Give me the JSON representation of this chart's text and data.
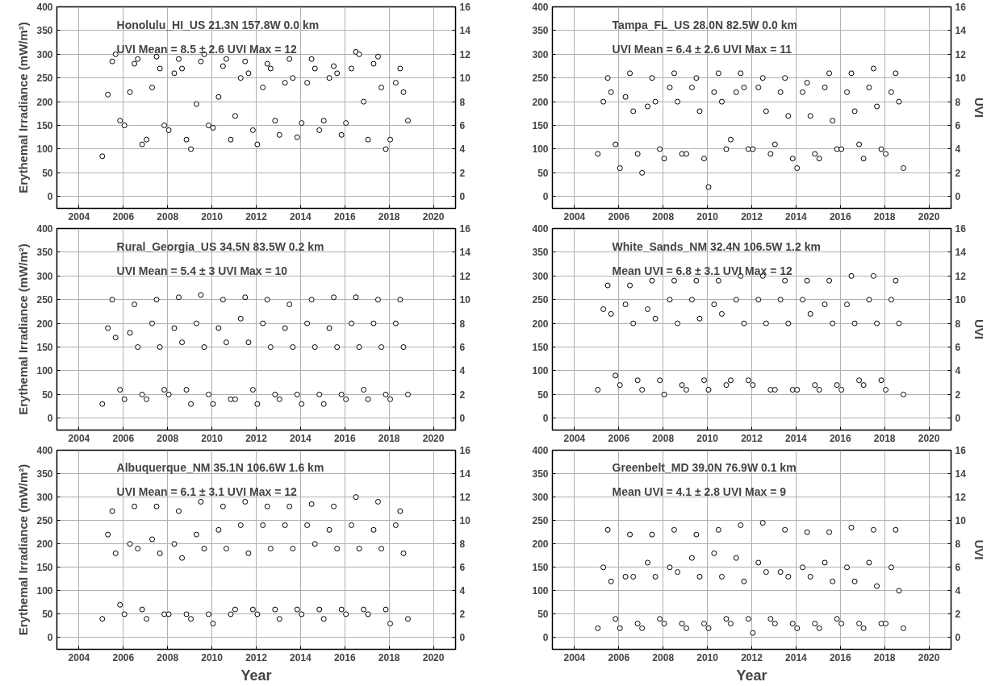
{
  "chart_data": [
    {
      "type": "scatter",
      "annotations": [
        "Honolulu_HI_US    21.3N  157.8W     0.0 km",
        "UVI Mean = 8.5 ± 2.6    UVI Max = 12"
      ],
      "ylabel": "Erythemal Irradiance (mW/m²)",
      "xlim": [
        2003,
        2021
      ],
      "xticks": [
        2004,
        2006,
        2008,
        2010,
        2012,
        2014,
        2016,
        2018,
        2020
      ],
      "ylim": [
        -25,
        400
      ],
      "yticks": [
        0,
        50,
        100,
        150,
        200,
        250,
        300,
        350,
        400
      ],
      "y2lim": [
        -1,
        16
      ],
      "y2ticks": [
        0,
        2,
        4,
        6,
        8,
        10,
        12,
        14,
        16
      ],
      "grid": true,
      "marker": "circle",
      "tick_labels": "xy",
      "x": [
        2005.05,
        2005.3,
        2005.5,
        2005.65,
        2005.85,
        2006.05,
        2006.3,
        2006.5,
        2006.65,
        2006.85,
        2007.05,
        2007.3,
        2007.5,
        2007.65,
        2007.85,
        2008.05,
        2008.3,
        2008.5,
        2008.65,
        2008.85,
        2009.05,
        2009.3,
        2009.5,
        2009.65,
        2009.85,
        2010.05,
        2010.3,
        2010.5,
        2010.65,
        2010.85,
        2011.05,
        2011.3,
        2011.5,
        2011.65,
        2011.85,
        2012.05,
        2012.3,
        2012.5,
        2012.65,
        2012.85,
        2013.05,
        2013.3,
        2013.5,
        2013.65,
        2013.85,
        2014.05,
        2014.3,
        2014.5,
        2014.65,
        2014.85,
        2015.05,
        2015.3,
        2015.5,
        2015.65,
        2015.85,
        2016.05,
        2016.3,
        2016.5,
        2016.65,
        2016.85,
        2017.05,
        2017.3,
        2017.5,
        2017.65,
        2017.85,
        2018.05,
        2018.3,
        2018.5,
        2018.65,
        2018.85
      ],
      "series": [
        {
          "color": "#000000",
          "values": [
            85,
            215,
            285,
            300,
            160,
            150,
            220,
            280,
            290,
            110,
            120,
            230,
            295,
            270,
            150,
            140,
            260,
            290,
            270,
            120,
            100,
            195,
            285,
            300,
            150,
            145,
            210,
            275,
            290,
            120,
            170,
            250,
            285,
            260,
            140,
            110,
            230,
            280,
            270,
            160,
            130,
            240,
            290,
            250,
            125,
            155,
            240,
            290,
            270,
            140,
            160,
            250,
            275,
            260,
            130,
            155,
            270,
            305,
            300,
            200,
            120,
            280,
            295,
            230,
            100,
            120,
            240,
            270,
            220,
            160
          ]
        }
      ]
    },
    {
      "type": "scatter",
      "annotations": [
        "Tampa_FL_US    28.0N   82.5W     0.0 km",
        "UVI Mean = 6.4 ± 2.6    UVI Max = 11"
      ],
      "y2label": "UVI",
      "xlim": [
        2003,
        2021
      ],
      "xticks": [
        2004,
        2006,
        2008,
        2010,
        2012,
        2014,
        2016,
        2018,
        2020
      ],
      "ylim": [
        -25,
        400
      ],
      "yticks": [
        0,
        50,
        100,
        150,
        200,
        250,
        300,
        350,
        400
      ],
      "y2lim": [
        -1,
        16
      ],
      "y2ticks": [
        0,
        2,
        4,
        6,
        8,
        10,
        12,
        14,
        16
      ],
      "grid": true,
      "marker": "circle",
      "x": [
        2005.05,
        2005.3,
        2005.5,
        2005.65,
        2005.85,
        2006.05,
        2006.3,
        2006.5,
        2006.65,
        2006.85,
        2007.05,
        2007.3,
        2007.5,
        2007.65,
        2007.85,
        2008.05,
        2008.3,
        2008.5,
        2008.65,
        2008.85,
        2009.05,
        2009.3,
        2009.5,
        2009.65,
        2009.85,
        2010.05,
        2010.3,
        2010.5,
        2010.65,
        2010.85,
        2011.05,
        2011.3,
        2011.5,
        2011.65,
        2011.85,
        2012.05,
        2012.3,
        2012.5,
        2012.65,
        2012.85,
        2013.05,
        2013.3,
        2013.5,
        2013.65,
        2013.85,
        2014.05,
        2014.3,
        2014.5,
        2014.65,
        2014.85,
        2015.05,
        2015.3,
        2015.5,
        2015.65,
        2015.85,
        2016.05,
        2016.3,
        2016.5,
        2016.65,
        2016.85,
        2017.05,
        2017.3,
        2017.5,
        2017.65,
        2017.85,
        2018.05,
        2018.3,
        2018.5,
        2018.65,
        2018.85
      ],
      "series": [
        {
          "color": "#000000",
          "values": [
            90,
            200,
            250,
            220,
            110,
            60,
            210,
            260,
            180,
            90,
            50,
            190,
            250,
            200,
            100,
            80,
            230,
            260,
            200,
            90,
            90,
            230,
            250,
            180,
            80,
            20,
            220,
            260,
            200,
            100,
            120,
            220,
            260,
            230,
            100,
            100,
            230,
            250,
            180,
            90,
            110,
            220,
            250,
            170,
            80,
            60,
            220,
            240,
            170,
            90,
            80,
            230,
            260,
            160,
            100,
            100,
            220,
            260,
            180,
            110,
            80,
            230,
            270,
            190,
            100,
            90,
            220,
            260,
            200,
            60
          ]
        }
      ]
    },
    {
      "type": "scatter",
      "annotations": [
        "Rural_Georgia_US   34.5N   83.5W    0.2 km",
        "UVI Mean = 5.4 ± 3    UVI Max = 10"
      ],
      "ylabel": "Erythemal Irradiance (mW/m²)",
      "xlim": [
        2003,
        2021
      ],
      "xticks": [
        2004,
        2006,
        2008,
        2010,
        2012,
        2014,
        2016,
        2018,
        2020
      ],
      "ylim": [
        -25,
        400
      ],
      "yticks": [
        0,
        50,
        100,
        150,
        200,
        250,
        300,
        350,
        400
      ],
      "y2lim": [
        -1,
        16
      ],
      "y2ticks": [
        0,
        2,
        4,
        6,
        8,
        10,
        12,
        14,
        16
      ],
      "grid": true,
      "marker": "circle",
      "x": [
        2005.05,
        2005.3,
        2005.5,
        2005.65,
        2005.85,
        2006.05,
        2006.3,
        2006.5,
        2006.65,
        2006.85,
        2007.05,
        2007.3,
        2007.5,
        2007.65,
        2007.85,
        2008.05,
        2008.3,
        2008.5,
        2008.65,
        2008.85,
        2009.05,
        2009.3,
        2009.5,
        2009.65,
        2009.85,
        2010.05,
        2010.3,
        2010.5,
        2010.65,
        2010.85,
        2011.05,
        2011.3,
        2011.5,
        2011.65,
        2011.85,
        2012.05,
        2012.3,
        2012.5,
        2012.65,
        2012.85,
        2013.05,
        2013.3,
        2013.5,
        2013.65,
        2013.85,
        2014.05,
        2014.3,
        2014.5,
        2014.65,
        2014.85,
        2015.05,
        2015.3,
        2015.5,
        2015.65,
        2015.85,
        2016.05,
        2016.3,
        2016.5,
        2016.65,
        2016.85,
        2017.05,
        2017.3,
        2017.5,
        2017.65,
        2017.85,
        2018.05,
        2018.3,
        2018.5,
        2018.65,
        2018.85
      ],
      "series": [
        {
          "color": "#000000",
          "values": [
            30,
            190,
            250,
            170,
            60,
            40,
            180,
            240,
            150,
            50,
            40,
            200,
            250,
            150,
            60,
            50,
            190,
            255,
            160,
            60,
            30,
            200,
            260,
            150,
            50,
            30,
            190,
            250,
            160,
            40,
            40,
            210,
            255,
            160,
            60,
            30,
            200,
            250,
            150,
            50,
            40,
            190,
            240,
            150,
            50,
            30,
            200,
            250,
            150,
            50,
            30,
            190,
            255,
            150,
            50,
            40,
            200,
            255,
            150,
            60,
            40,
            200,
            250,
            150,
            50,
            40,
            200,
            250,
            150,
            50
          ]
        }
      ]
    },
    {
      "type": "scatter",
      "annotations": [
        "White_Sands_NM   32.4N   106.5W    1.2 km",
        "Mean UVI = 6.8 ±  3.1  UVI Max = 12"
      ],
      "y2label": "UVI",
      "xlim": [
        2003,
        2021
      ],
      "xticks": [
        2004,
        2006,
        2008,
        2010,
        2012,
        2014,
        2016,
        2018,
        2020
      ],
      "ylim": [
        -25,
        400
      ],
      "yticks": [
        0,
        50,
        100,
        150,
        200,
        250,
        300,
        350,
        400
      ],
      "y2lim": [
        -1,
        16
      ],
      "y2ticks": [
        0,
        2,
        4,
        6,
        8,
        10,
        12,
        14,
        16
      ],
      "grid": true,
      "marker": "circle",
      "x": [
        2005.05,
        2005.3,
        2005.5,
        2005.65,
        2005.85,
        2006.05,
        2006.3,
        2006.5,
        2006.65,
        2006.85,
        2007.05,
        2007.3,
        2007.5,
        2007.65,
        2007.85,
        2008.05,
        2008.3,
        2008.5,
        2008.65,
        2008.85,
        2009.05,
        2009.3,
        2009.5,
        2009.65,
        2009.85,
        2010.05,
        2010.3,
        2010.5,
        2010.65,
        2010.85,
        2011.05,
        2011.3,
        2011.5,
        2011.65,
        2011.85,
        2012.05,
        2012.3,
        2012.5,
        2012.65,
        2012.85,
        2013.05,
        2013.3,
        2013.5,
        2013.65,
        2013.85,
        2014.05,
        2014.3,
        2014.5,
        2014.65,
        2014.85,
        2015.05,
        2015.3,
        2015.5,
        2015.65,
        2015.85,
        2016.05,
        2016.3,
        2016.5,
        2016.65,
        2016.85,
        2017.05,
        2017.3,
        2017.5,
        2017.65,
        2017.85,
        2018.05,
        2018.3,
        2018.5,
        2018.65,
        2018.85
      ],
      "series": [
        {
          "color": "#000000",
          "values": [
            60,
            230,
            280,
            220,
            90,
            70,
            240,
            280,
            200,
            80,
            60,
            230,
            290,
            210,
            80,
            50,
            250,
            290,
            200,
            70,
            60,
            250,
            290,
            210,
            80,
            60,
            240,
            290,
            220,
            70,
            80,
            250,
            300,
            200,
            80,
            70,
            250,
            300,
            200,
            60,
            60,
            250,
            290,
            200,
            60,
            60,
            250,
            290,
            220,
            70,
            60,
            240,
            290,
            200,
            70,
            60,
            240,
            300,
            200,
            80,
            70,
            250,
            300,
            200,
            80,
            60,
            250,
            290,
            200,
            50
          ]
        }
      ]
    },
    {
      "type": "scatter",
      "annotations": [
        "Albuquerque_NM  35.1N  106.6W 1.6 km",
        "UVI Mean = 6.1 ± 3.1    UVI Max = 12"
      ],
      "ylabel": "Erythemal Irradiance (mW/m²)",
      "xlabel": "Year",
      "xlim": [
        2003,
        2021
      ],
      "xticks": [
        2004,
        2006,
        2008,
        2010,
        2012,
        2014,
        2016,
        2018,
        2020
      ],
      "ylim": [
        -25,
        400
      ],
      "yticks": [
        0,
        50,
        100,
        150,
        200,
        250,
        300,
        350,
        400
      ],
      "y2lim": [
        -1,
        16
      ],
      "y2ticks": [
        0,
        2,
        4,
        6,
        8,
        10,
        12,
        14,
        16
      ],
      "grid": true,
      "marker": "circle",
      "x": [
        2005.05,
        2005.3,
        2005.5,
        2005.65,
        2005.85,
        2006.05,
        2006.3,
        2006.5,
        2006.65,
        2006.85,
        2007.05,
        2007.3,
        2007.5,
        2007.65,
        2007.85,
        2008.05,
        2008.3,
        2008.5,
        2008.65,
        2008.85,
        2009.05,
        2009.3,
        2009.5,
        2009.65,
        2009.85,
        2010.05,
        2010.3,
        2010.5,
        2010.65,
        2010.85,
        2011.05,
        2011.3,
        2011.5,
        2011.65,
        2011.85,
        2012.05,
        2012.3,
        2012.5,
        2012.65,
        2012.85,
        2013.05,
        2013.3,
        2013.5,
        2013.65,
        2013.85,
        2014.05,
        2014.3,
        2014.5,
        2014.65,
        2014.85,
        2015.05,
        2015.3,
        2015.5,
        2015.65,
        2015.85,
        2016.05,
        2016.3,
        2016.5,
        2016.65,
        2016.85,
        2017.05,
        2017.3,
        2017.5,
        2017.65,
        2017.85,
        2018.05,
        2018.3,
        2018.5,
        2018.65,
        2018.85
      ],
      "series": [
        {
          "color": "#000000",
          "values": [
            40,
            220,
            270,
            180,
            70,
            50,
            200,
            280,
            190,
            60,
            40,
            210,
            280,
            180,
            50,
            50,
            200,
            270,
            170,
            50,
            40,
            220,
            290,
            190,
            50,
            30,
            230,
            280,
            190,
            50,
            60,
            240,
            290,
            180,
            60,
            50,
            240,
            280,
            190,
            60,
            40,
            240,
            280,
            190,
            60,
            50,
            240,
            285,
            200,
            60,
            40,
            230,
            280,
            190,
            60,
            50,
            240,
            300,
            190,
            60,
            50,
            230,
            290,
            190,
            60,
            30,
            240,
            270,
            180,
            40
          ]
        }
      ]
    },
    {
      "type": "scatter",
      "annotations": [
        "Greenbelt_MD    39.0N   76.9W     0.1 km",
        "Mean UVI = 4.1 ±  2.8     UVI Max = 9"
      ],
      "y2label": "UVI",
      "xlabel": "Year",
      "xlim": [
        2003,
        2021
      ],
      "xticks": [
        2004,
        2006,
        2008,
        2010,
        2012,
        2014,
        2016,
        2018,
        2020
      ],
      "ylim": [
        -25,
        400
      ],
      "yticks": [
        0,
        50,
        100,
        150,
        200,
        250,
        300,
        350,
        400
      ],
      "y2lim": [
        -1,
        16
      ],
      "y2ticks": [
        0,
        2,
        4,
        6,
        8,
        10,
        12,
        14,
        16
      ],
      "grid": true,
      "marker": "circle",
      "x": [
        2005.05,
        2005.3,
        2005.5,
        2005.65,
        2005.85,
        2006.05,
        2006.3,
        2006.5,
        2006.65,
        2006.85,
        2007.05,
        2007.3,
        2007.5,
        2007.65,
        2007.85,
        2008.05,
        2008.3,
        2008.5,
        2008.65,
        2008.85,
        2009.05,
        2009.3,
        2009.5,
        2009.65,
        2009.85,
        2010.05,
        2010.3,
        2010.5,
        2010.65,
        2010.85,
        2011.05,
        2011.3,
        2011.5,
        2011.65,
        2011.85,
        2012.05,
        2012.3,
        2012.5,
        2012.65,
        2012.85,
        2013.05,
        2013.3,
        2013.5,
        2013.65,
        2013.85,
        2014.05,
        2014.3,
        2014.5,
        2014.65,
        2014.85,
        2015.05,
        2015.3,
        2015.5,
        2015.65,
        2015.85,
        2016.05,
        2016.3,
        2016.5,
        2016.65,
        2016.85,
        2017.05,
        2017.3,
        2017.5,
        2017.65,
        2017.85,
        2018.05,
        2018.3,
        2018.5,
        2018.65,
        2018.85
      ],
      "series": [
        {
          "color": "#000000",
          "values": [
            20,
            150,
            230,
            120,
            40,
            20,
            130,
            220,
            130,
            30,
            20,
            160,
            220,
            130,
            40,
            30,
            150,
            230,
            140,
            30,
            20,
            170,
            220,
            130,
            30,
            20,
            180,
            230,
            130,
            40,
            30,
            170,
            240,
            120,
            40,
            10,
            160,
            245,
            140,
            40,
            30,
            140,
            230,
            130,
            30,
            20,
            150,
            225,
            130,
            30,
            20,
            160,
            225,
            120,
            40,
            30,
            150,
            235,
            120,
            30,
            20,
            160,
            230,
            110,
            30,
            30,
            150,
            230,
            100,
            20
          ]
        }
      ]
    }
  ]
}
